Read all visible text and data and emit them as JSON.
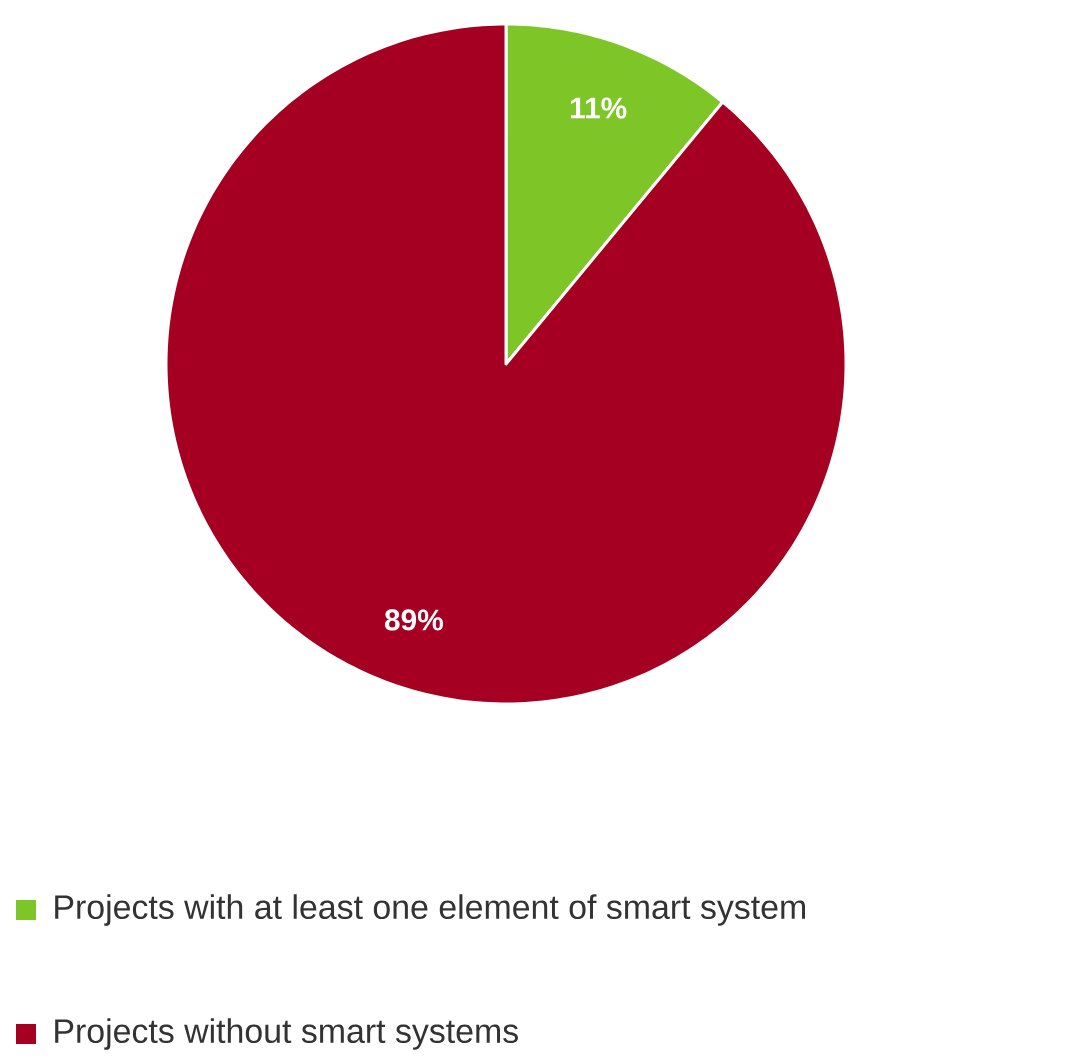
{
  "chart_data": {
    "type": "pie",
    "categories": [
      "Projects with at least one element of smart system",
      "Projects without smart systems"
    ],
    "values": [
      11,
      89
    ],
    "colors": [
      "#7ec628",
      "#a50021"
    ],
    "value_labels": [
      "11%",
      "89%"
    ],
    "legend": "bottom"
  }
}
